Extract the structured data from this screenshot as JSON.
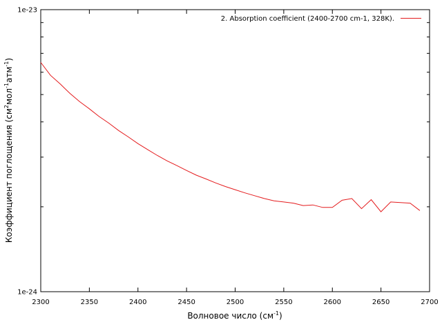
{
  "chart_data": {
    "type": "line",
    "x_axis": {
      "label_parts": [
        "Волновое число (см",
        "-1",
        ")"
      ],
      "min": 2300,
      "max": 2700,
      "ticks": [
        2300,
        2350,
        2400,
        2450,
        2500,
        2550,
        2600,
        2650,
        2700
      ]
    },
    "y_axis": {
      "label_parts": [
        "Коэффициент поглощения (см",
        "2",
        "мол",
        "-1",
        "атм",
        "-1",
        ")"
      ],
      "scale": "log",
      "min": 1e-24,
      "max": 1e-23,
      "tick_labels": [
        {
          "value": 1e-24,
          "label": "1e-24"
        },
        {
          "value": 1e-23,
          "label": "1e-23"
        }
      ],
      "minor_ticks": [
        2e-24,
        3e-24,
        4e-24,
        5e-24,
        6e-24,
        7e-24,
        8e-24,
        9e-24
      ]
    },
    "legend": {
      "position": "top-right",
      "label": "2. Absorption coefficient (2400-2700 cm-1, 328K)."
    },
    "series": [
      {
        "name": "2. Absorption coefficient (2400-2700 cm-1, 328K).",
        "color": "#e41a1c",
        "x": [
          2300,
          2310,
          2320,
          2330,
          2340,
          2350,
          2360,
          2370,
          2380,
          2390,
          2400,
          2410,
          2420,
          2430,
          2440,
          2450,
          2460,
          2470,
          2480,
          2490,
          2500,
          2510,
          2520,
          2530,
          2540,
          2550,
          2560,
          2570,
          2580,
          2590,
          2600,
          2610,
          2620,
          2630,
          2640,
          2650,
          2660,
          2670,
          2680,
          2690
        ],
        "y": [
          6.5e-24,
          5.85e-24,
          5.45e-24,
          5.05e-24,
          4.72e-24,
          4.45e-24,
          4.18e-24,
          3.96e-24,
          3.73e-24,
          3.54e-24,
          3.35e-24,
          3.19e-24,
          3.04e-24,
          2.91e-24,
          2.8e-24,
          2.69e-24,
          2.59e-24,
          2.51e-24,
          2.43e-24,
          2.36e-24,
          2.3e-24,
          2.24e-24,
          2.19e-24,
          2.14e-24,
          2.1e-24,
          2.08e-24,
          2.06e-24,
          2.02e-24,
          2.03e-24,
          1.99e-24,
          1.99e-24,
          2.11e-24,
          2.14e-24,
          1.97e-24,
          2.12e-24,
          1.92e-24,
          2.08e-24,
          2.07e-24,
          2.06e-24,
          1.94e-24
        ]
      }
    ]
  }
}
